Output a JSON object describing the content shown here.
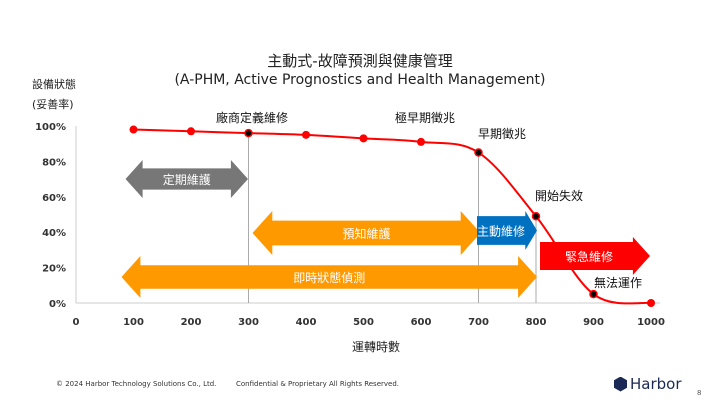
{
  "chart_data": {
    "type": "line",
    "title": "主動式-故障預測與健康管理",
    "subtitle": "(A-PHM, Active Prognostics and Health Management)",
    "ylabel": [
      "設備狀態",
      "(妥善率)"
    ],
    "xlabel": "運轉時數",
    "x": [
      100,
      200,
      300,
      400,
      500,
      600,
      700,
      800,
      900,
      1000
    ],
    "y": [
      98,
      97,
      96,
      95,
      93,
      91,
      85,
      49,
      5,
      0
    ],
    "xlim": [
      0,
      1000
    ],
    "ylim": [
      0,
      100
    ],
    "xticks": [
      "0",
      "100",
      "200",
      "300",
      "400",
      "500",
      "600",
      "700",
      "800",
      "900",
      "1000"
    ],
    "yticks": [
      "0%",
      "20%",
      "40%",
      "60%",
      "80%",
      "100%"
    ],
    "line_color": "#ff0000",
    "annotations": [
      {
        "x": 300,
        "label": "廠商定義維修"
      },
      {
        "x": 600,
        "label": "極早期徵兆"
      },
      {
        "x": 700,
        "label": "早期徵兆"
      },
      {
        "x": 800,
        "label": "開始失效"
      },
      {
        "x": 900,
        "label": "無法運作"
      }
    ],
    "spans": [
      {
        "label": "定期維護",
        "from": 100,
        "to": 300,
        "color": "#777777",
        "type": "double"
      },
      {
        "label": "預知維護",
        "from": 300,
        "to": 700,
        "color": "#ff9900",
        "type": "double"
      },
      {
        "label": "主動維修",
        "from": 700,
        "to": 800,
        "color": "#0070c0",
        "type": "right"
      },
      {
        "label": "緊急維修",
        "from": 800,
        "to": 1000,
        "color": "#ff0000",
        "type": "right"
      },
      {
        "label": "即時狀態偵測",
        "from": 100,
        "to": 800,
        "color": "#ff9900",
        "type": "double"
      }
    ]
  },
  "footer": {
    "copyright": "© 2024  Harbor Technology Solutions Co., Ltd.",
    "confidential": "Confidential & Proprietary All Rights Reserved.",
    "brand": "Harbor",
    "page": "8"
  }
}
